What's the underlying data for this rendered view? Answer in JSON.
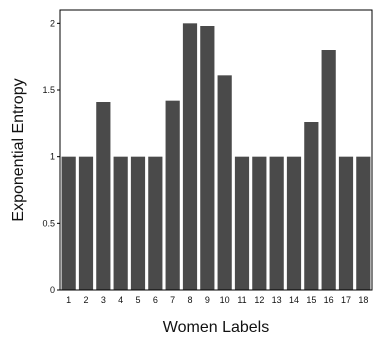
{
  "chart_data": {
    "type": "bar",
    "categories": [
      "1",
      "2",
      "3",
      "4",
      "5",
      "6",
      "7",
      "8",
      "9",
      "10",
      "11",
      "12",
      "13",
      "14",
      "15",
      "16",
      "17",
      "18"
    ],
    "values": [
      1,
      1,
      1.41,
      1,
      1,
      1,
      1.42,
      2.0,
      1.98,
      1.61,
      1,
      1,
      1,
      1,
      1.26,
      1.8,
      1,
      1
    ],
    "title": "",
    "xlabel": "Women Labels",
    "ylabel": "Exponential Entropy",
    "ylim": [
      0,
      2.1
    ],
    "yticks": [
      0,
      0.5,
      1,
      1.5,
      2
    ],
    "ytick_labels": [
      "0",
      "0.5",
      "1",
      "1.5",
      "2"
    ],
    "grid": false,
    "bar_color": "#4a4a4a"
  }
}
